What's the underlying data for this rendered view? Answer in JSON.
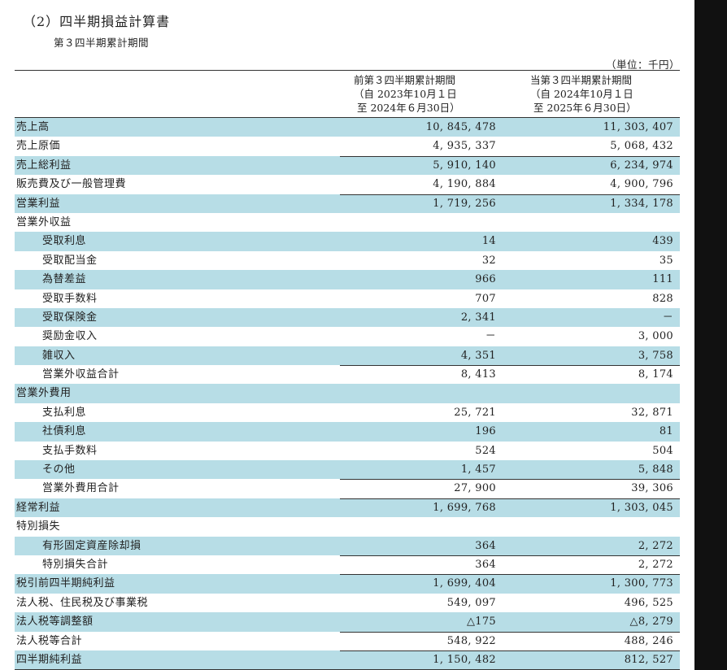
{
  "section_title": "（2）四半期損益計算書",
  "sub_title": "第３四半期累計期間",
  "unit_note": "（単位：千円）",
  "headers": {
    "prev": "前第３四半期累計期間\n（自 2023年10月１日\n 至 2024年６月30日）",
    "curr": "当第３四半期累計期間\n（自 2024年10月１日\n 至 2025年６月30日）"
  },
  "rows": [
    {
      "label": "売上高",
      "prev": "10, 845, 478",
      "curr": "11, 303, 407"
    },
    {
      "label": "売上原価",
      "prev": "4, 935, 337",
      "curr": "5, 068, 432"
    },
    {
      "label": "売上総利益",
      "prev": "5, 910, 140",
      "curr": "6, 234, 974"
    },
    {
      "label": "販売費及び一般管理費",
      "prev": "4, 190, 884",
      "curr": "4, 900, 796"
    },
    {
      "label": "営業利益",
      "prev": "1, 719, 256",
      "curr": "1, 334, 178"
    },
    {
      "label": "営業外収益",
      "prev": "",
      "curr": ""
    },
    {
      "label": "受取利息",
      "prev": "14",
      "curr": "439"
    },
    {
      "label": "受取配当金",
      "prev": "32",
      "curr": "35"
    },
    {
      "label": "為替差益",
      "prev": "966",
      "curr": "111"
    },
    {
      "label": "受取手数料",
      "prev": "707",
      "curr": "828"
    },
    {
      "label": "受取保険金",
      "prev": "2, 341",
      "curr": "－"
    },
    {
      "label": "奨励金収入",
      "prev": "－",
      "curr": "3, 000"
    },
    {
      "label": "雑収入",
      "prev": "4, 351",
      "curr": "3, 758"
    },
    {
      "label": "営業外収益合計",
      "prev": "8, 413",
      "curr": "8, 174"
    },
    {
      "label": "営業外費用",
      "prev": "",
      "curr": ""
    },
    {
      "label": "支払利息",
      "prev": "25, 721",
      "curr": "32, 871"
    },
    {
      "label": "社債利息",
      "prev": "196",
      "curr": "81"
    },
    {
      "label": "支払手数料",
      "prev": "524",
      "curr": "504"
    },
    {
      "label": "その他",
      "prev": "1, 457",
      "curr": "5, 848"
    },
    {
      "label": "営業外費用合計",
      "prev": "27, 900",
      "curr": "39, 306"
    },
    {
      "label": "経常利益",
      "prev": "1, 699, 768",
      "curr": "1, 303, 045"
    },
    {
      "label": "特別損失",
      "prev": "",
      "curr": ""
    },
    {
      "label": "有形固定資産除却損",
      "prev": "364",
      "curr": "2, 272"
    },
    {
      "label": "特別損失合計",
      "prev": "364",
      "curr": "2, 272"
    },
    {
      "label": "税引前四半期純利益",
      "prev": "1, 699, 404",
      "curr": "1, 300, 773"
    },
    {
      "label": "法人税、住民税及び事業税",
      "prev": "549, 097",
      "curr": "496, 525"
    },
    {
      "label": "法人税等調整額",
      "prev": "△175",
      "curr": "△8, 279"
    },
    {
      "label": "法人税等合計",
      "prev": "548, 922",
      "curr": "488, 246"
    },
    {
      "label": "四半期純利益",
      "prev": "1, 150, 482",
      "curr": "812, 527"
    }
  ]
}
